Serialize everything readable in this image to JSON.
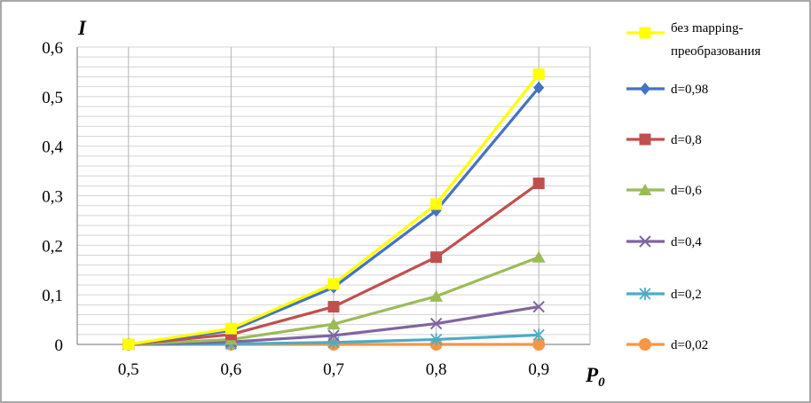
{
  "chart_data": {
    "type": "line",
    "xlabel": "P",
    "xlabel_sub": "0",
    "ylabel": "I",
    "x": [
      0.5,
      0.6,
      0.7,
      0.8,
      0.9
    ],
    "x_tick_labels": [
      "0,5",
      "0,6",
      "0,7",
      "0,8",
      "0,9"
    ],
    "xlim": [
      0.45,
      0.95
    ],
    "ylim": [
      0,
      0.6
    ],
    "y_ticks": [
      0,
      0.1,
      0.2,
      0.3,
      0.4,
      0.5,
      0.6
    ],
    "y_tick_labels": [
      "0",
      "0,1",
      "0,2",
      "0,3",
      "0,4",
      "0,5",
      "0,6"
    ],
    "grid": true,
    "legend_position": "right",
    "series": [
      {
        "name_lines": [
          "без mapping-",
          "преобразования"
        ],
        "color": "#FFFF00",
        "marker": "square",
        "values": [
          0,
          0.032,
          0.122,
          0.283,
          0.545
        ]
      },
      {
        "name_lines": [
          "d=0,98"
        ],
        "color": "#4472C4",
        "marker": "diamond",
        "values": [
          0,
          0.028,
          0.115,
          0.27,
          0.518
        ]
      },
      {
        "name_lines": [
          "d=0,8"
        ],
        "color": "#C0504D",
        "marker": "square",
        "values": [
          0,
          0.02,
          0.076,
          0.176,
          0.325
        ]
      },
      {
        "name_lines": [
          "d=0,6"
        ],
        "color": "#9BBB59",
        "marker": "triangle",
        "values": [
          0,
          0.01,
          0.041,
          0.097,
          0.176
        ]
      },
      {
        "name_lines": [
          "d=0,4"
        ],
        "color": "#8064A2",
        "marker": "x",
        "values": [
          0,
          0.005,
          0.018,
          0.042,
          0.076
        ]
      },
      {
        "name_lines": [
          "d=0,2"
        ],
        "color": "#4BACC6",
        "marker": "star",
        "values": [
          0,
          0.001,
          0.004,
          0.01,
          0.019
        ]
      },
      {
        "name_lines": [
          "d=0,02"
        ],
        "color": "#F79646",
        "marker": "circle",
        "values": [
          0,
          0.0,
          0.0,
          0.0,
          0.0
        ]
      }
    ]
  }
}
